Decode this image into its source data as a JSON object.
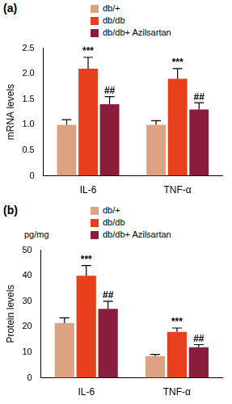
{
  "chart_data": [
    {
      "type": "bar",
      "panel": "(a)",
      "y_label": "mRNA levels",
      "categories": [
        "IL-6",
        "TNF-α"
      ],
      "series": [
        {
          "name": "db/+",
          "color": "#dba382",
          "values": [
            1.0,
            1.0
          ],
          "errors": [
            0.1,
            0.08
          ]
        },
        {
          "name": "db/db",
          "color": "#e8401c",
          "values": [
            2.1,
            1.9
          ],
          "errors": [
            0.22,
            0.2
          ],
          "marks": [
            "***",
            "***"
          ]
        },
        {
          "name": "db/db+ Azilsartan",
          "color": "#8a1c3c",
          "values": [
            1.4,
            1.3
          ],
          "errors": [
            0.15,
            0.13
          ],
          "marks": [
            "##",
            "##"
          ]
        }
      ],
      "ylim": [
        0,
        2.5
      ],
      "yticks": [
        0,
        0.5,
        {
          "value": 1,
          "label": "1.0"
        },
        1.5,
        {
          "value": 2,
          "label": "2.0"
        },
        2.5
      ],
      "grid": false,
      "legend": "top"
    },
    {
      "type": "bar",
      "panel": "(b)",
      "y_label": "Protein levels",
      "y_unit": "pg/mg",
      "categories": [
        "IL-6",
        "TNF-α"
      ],
      "series": [
        {
          "name": "db/+",
          "color": "#dba382",
          "values": [
            21.5,
            8.5
          ],
          "errors": [
            2,
            0.7
          ]
        },
        {
          "name": "db/db",
          "color": "#e8401c",
          "values": [
            40,
            18
          ],
          "errors": [
            4,
            1.5
          ],
          "marks": [
            "***",
            "***"
          ]
        },
        {
          "name": "db/db+ Azilsartan",
          "color": "#8a1c3c",
          "values": [
            27,
            12
          ],
          "errors": [
            3,
            1
          ],
          "marks": [
            "##",
            "##"
          ]
        }
      ],
      "ylim": [
        0,
        50
      ],
      "yticks": [
        0,
        10,
        20,
        30,
        40,
        50
      ],
      "grid": false,
      "legend": "top"
    }
  ]
}
